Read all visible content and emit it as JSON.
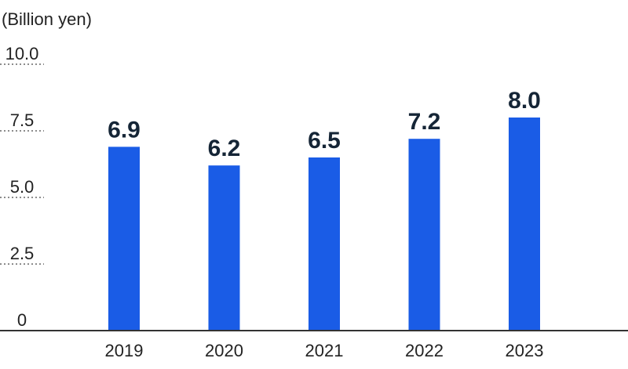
{
  "chart_data": {
    "type": "bar",
    "unit_label": "(Billion yen)",
    "categories": [
      "2019",
      "2020",
      "2021",
      "2022",
      "2023"
    ],
    "values": [
      6.9,
      6.2,
      6.5,
      7.2,
      8.0
    ],
    "value_labels": [
      "6.9",
      "6.2",
      "6.5",
      "7.2",
      "8.0"
    ],
    "y_ticks": [
      "10.0",
      "7.5",
      "5.0",
      "2.5",
      "0"
    ],
    "y_tick_values": [
      10,
      7.5,
      5,
      2.5,
      0
    ],
    "ylim": [
      0,
      10
    ],
    "grid": "dotted horizontal at y-axis ticks (left edge only)",
    "legend": "none"
  },
  "colors": {
    "bar": "#1a5ce6",
    "value_label": "#152536",
    "axis_text": "#222222",
    "baseline": "#333333",
    "grid_dots": "#666666"
  }
}
